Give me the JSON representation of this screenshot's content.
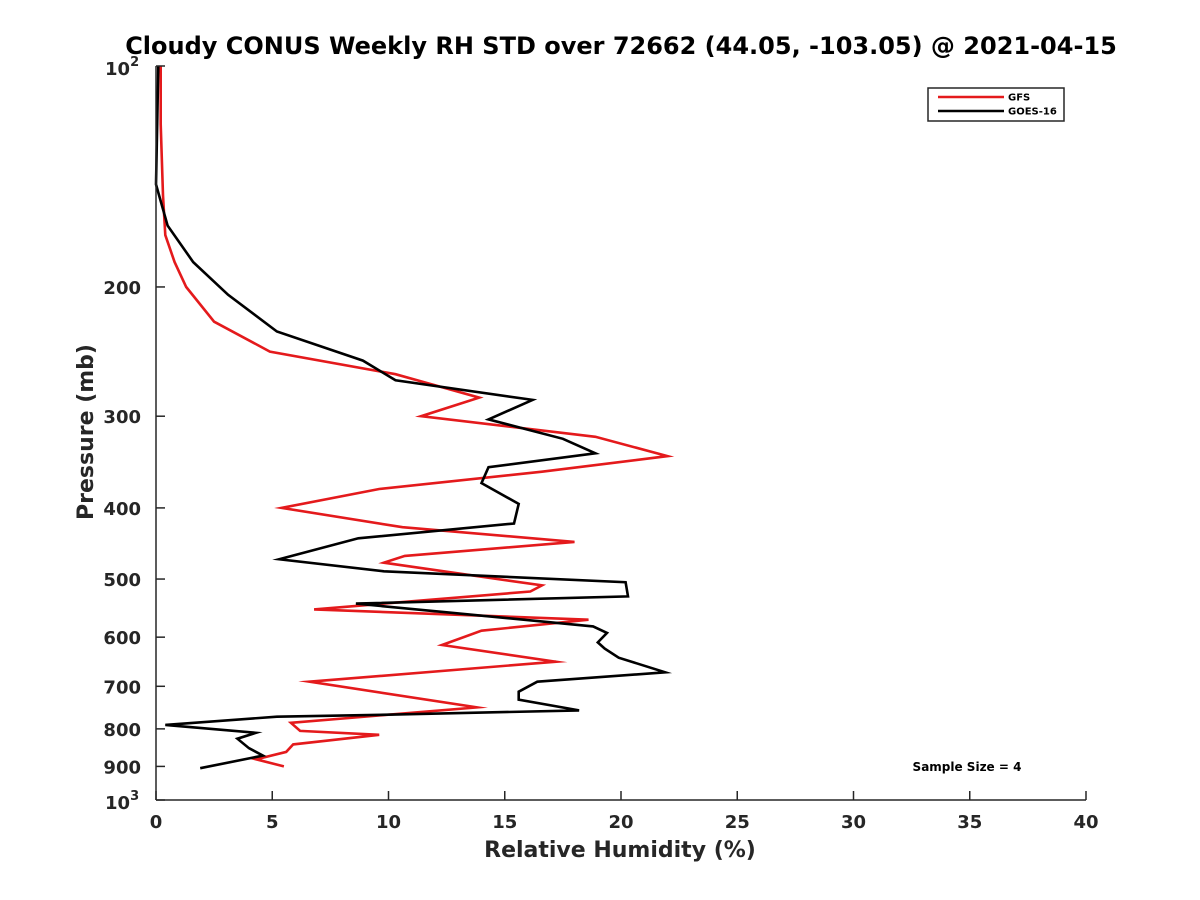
{
  "chart_data": {
    "type": "line",
    "title": "Cloudy CONUS Weekly RH STD over 72662 (44.05, -103.05) @ 2021-04-15",
    "xlabel": "Relative Humidity (%)",
    "ylabel": "Pressure (mb)",
    "xlim": [
      0,
      40
    ],
    "ylim": [
      100,
      1000
    ],
    "y_scale": "log",
    "y_reversed": true,
    "x_ticks": [
      "0",
      "5",
      "10",
      "15",
      "20",
      "25",
      "30",
      "35",
      "40"
    ],
    "y_ticks": [
      {
        "value": 100,
        "base": "10",
        "exp": "2"
      },
      {
        "value": 200,
        "label": "200"
      },
      {
        "value": 300,
        "label": "300"
      },
      {
        "value": 400,
        "label": "400"
      },
      {
        "value": 500,
        "label": "500"
      },
      {
        "value": 600,
        "label": "600"
      },
      {
        "value": 700,
        "label": "700"
      },
      {
        "value": 800,
        "label": "800"
      },
      {
        "value": 900,
        "label": "900"
      },
      {
        "value": 1000,
        "base": "10",
        "exp": "3"
      }
    ],
    "legend_position": "top-right",
    "series": [
      {
        "name": "GFS",
        "color": "#e41a1c",
        "points": [
          [
            0.2,
            100
          ],
          [
            0.2,
            120
          ],
          [
            0.3,
            150
          ],
          [
            0.4,
            170
          ],
          [
            0.8,
            185
          ],
          [
            1.3,
            200
          ],
          [
            2.5,
            223
          ],
          [
            4.9,
            245
          ],
          [
            10.3,
            263
          ],
          [
            13.9,
            283
          ],
          [
            11.4,
            300
          ],
          [
            18.9,
            320
          ],
          [
            22.0,
            340
          ],
          [
            16.6,
            357
          ],
          [
            9.6,
            377
          ],
          [
            5.4,
            400
          ],
          [
            10.6,
            425
          ],
          [
            18.0,
            445
          ],
          [
            10.7,
            465
          ],
          [
            9.8,
            475
          ],
          [
            16.6,
            510
          ],
          [
            16.1,
            520
          ],
          [
            6.8,
            550
          ],
          [
            18.6,
            568
          ],
          [
            14.0,
            588
          ],
          [
            12.3,
            615
          ],
          [
            17.2,
            648
          ],
          [
            6.6,
            690
          ],
          [
            13.8,
            748
          ],
          [
            5.8,
            785
          ],
          [
            6.2,
            805
          ],
          [
            9.6,
            815
          ],
          [
            5.9,
            840
          ],
          [
            5.6,
            860
          ],
          [
            4.3,
            880
          ],
          [
            5.5,
            900
          ]
        ]
      },
      {
        "name": "GOES-16",
        "color": "#000000",
        "points": [
          [
            0.1,
            100
          ],
          [
            0.05,
            120
          ],
          [
            0.0,
            145
          ],
          [
            0.5,
            165
          ],
          [
            1.6,
            185
          ],
          [
            3.1,
            205
          ],
          [
            5.2,
            230
          ],
          [
            8.9,
            252
          ],
          [
            10.3,
            268
          ],
          [
            16.2,
            285
          ],
          [
            14.3,
            303
          ],
          [
            17.5,
            322
          ],
          [
            18.9,
            337
          ],
          [
            14.3,
            352
          ],
          [
            14.0,
            370
          ],
          [
            15.6,
            395
          ],
          [
            15.4,
            420
          ],
          [
            8.7,
            440
          ],
          [
            5.3,
            470
          ],
          [
            9.8,
            488
          ],
          [
            20.2,
            505
          ],
          [
            20.3,
            528
          ],
          [
            8.6,
            540
          ],
          [
            12.5,
            555
          ],
          [
            18.8,
            580
          ],
          [
            19.4,
            592
          ],
          [
            19.0,
            610
          ],
          [
            19.3,
            622
          ],
          [
            19.9,
            640
          ],
          [
            21.9,
            670
          ],
          [
            16.4,
            690
          ],
          [
            15.6,
            712
          ],
          [
            15.6,
            730
          ],
          [
            18.2,
            755
          ],
          [
            10.2,
            765
          ],
          [
            5.2,
            770
          ],
          [
            0.4,
            790
          ],
          [
            4.3,
            810
          ],
          [
            3.5,
            825
          ],
          [
            4.0,
            850
          ],
          [
            4.6,
            870
          ],
          [
            1.9,
            905
          ]
        ]
      }
    ],
    "annotation": "Sample Size = 4"
  }
}
